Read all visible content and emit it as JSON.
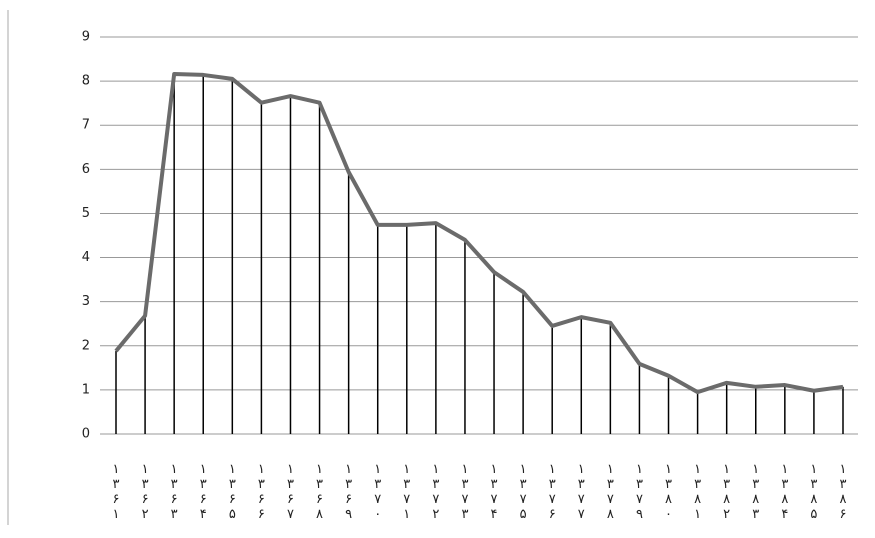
{
  "chart_data": {
    "type": "line",
    "categories": [
      "۱۳۶۱",
      "۱۳۶۲",
      "۱۳۶۳",
      "۱۳۶۴",
      "۱۳۶۵",
      "۱۳۶۶",
      "۱۳۶۷",
      "۱۳۶۸",
      "۱۳۶۹",
      "۱۳۷۰",
      "۱۳۷۱",
      "۱۳۷۲",
      "۱۳۷۳",
      "۱۳۷۴",
      "۱۳۷۵",
      "۱۳۷۶",
      "۱۳۷۷",
      "۱۳۷۸",
      "۱۳۷۹",
      "۱۳۸۰",
      "۱۳۸۱",
      "۱۳۸۲",
      "۱۳۸۳",
      "۱۳۸۴",
      "۱۳۸۵",
      "۱۳۸۶"
    ],
    "values": [
      1.88,
      2.68,
      8.16,
      8.14,
      8.05,
      7.51,
      7.66,
      7.51,
      5.94,
      4.74,
      4.74,
      4.78,
      4.4,
      3.67,
      3.22,
      2.45,
      2.65,
      2.52,
      1.59,
      1.32,
      0.95,
      1.16,
      1.07,
      1.11,
      0.98,
      1.07
    ],
    "color": "#6b6b6b",
    "ylim": [
      0,
      9
    ],
    "yticks": [
      0,
      1,
      2,
      3,
      4,
      5,
      6,
      7,
      8,
      9
    ],
    "grid": true
  }
}
